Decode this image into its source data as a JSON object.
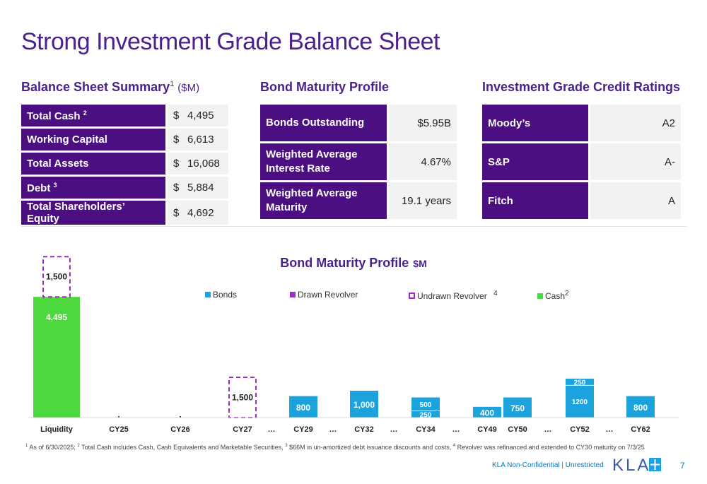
{
  "title": "Strong Investment Grade Balance Sheet",
  "balance_sheet": {
    "heading": "Balance Sheet Summary",
    "heading_sup": "1",
    "heading_unit": "($M)",
    "rows": [
      {
        "label": "Total Cash",
        "sup": "2",
        "currency": "$",
        "value": "4,495"
      },
      {
        "label": "Working Capital",
        "sup": "",
        "currency": "$",
        "value": "6,613"
      },
      {
        "label": "Total Assets",
        "sup": "",
        "currency": "$",
        "value": "16,068"
      },
      {
        "label": "Debt",
        "sup": "3",
        "currency": "$",
        "value": "5,884"
      },
      {
        "label": "Total Shareholders’ Equity",
        "sup": "",
        "currency": "$",
        "value": "4,692"
      }
    ]
  },
  "bond_profile": {
    "heading": "Bond Maturity Profile",
    "rows": [
      {
        "label": "Bonds Outstanding",
        "value": "$5.95B"
      },
      {
        "label": "Weighted Average Interest Rate",
        "value": "4.67%"
      },
      {
        "label": "Weighted Average Maturity",
        "value": "19.1 years"
      }
    ]
  },
  "credit_ratings": {
    "heading": "Investment Grade Credit Ratings",
    "rows": [
      {
        "label": "Moody’s",
        "value": "A2"
      },
      {
        "label": "S&P",
        "value": "A-"
      },
      {
        "label": "Fitch",
        "value": "A"
      }
    ]
  },
  "chart_data": {
    "type": "bar",
    "title": "Bond Maturity Profile",
    "title_unit": "$M",
    "legend": [
      {
        "name": "Bonds",
        "color": "#1ca2dc",
        "sup": "",
        "style": "solid"
      },
      {
        "name": "Drawn Revolver",
        "color": "#a02cc4",
        "sup": "",
        "style": "solid"
      },
      {
        "name": "Undrawn Revolver",
        "color": "#a02cc4",
        "sup": "4",
        "style": "dashed"
      },
      {
        "name": "Cash",
        "color": "#4cd93e",
        "sup": "2",
        "style": "solid"
      }
    ],
    "categories": [
      "Liquidity",
      "CY25",
      "CY26",
      "CY27",
      "…",
      "CY29",
      "…",
      "CY32",
      "…",
      "CY34",
      "…",
      "CY49",
      "CY50",
      "…",
      "CY52",
      "…",
      "CY62"
    ],
    "series": [
      {
        "name": "Cash",
        "values": [
          4495,
          0,
          0,
          0,
          null,
          0,
          null,
          0,
          null,
          0,
          null,
          0,
          0,
          null,
          0,
          null,
          0
        ]
      },
      {
        "name": "Undrawn Revolver",
        "values": [
          1500,
          0,
          0,
          1500,
          null,
          0,
          null,
          0,
          null,
          0,
          null,
          0,
          0,
          null,
          0,
          null,
          0
        ]
      },
      {
        "name": "Bonds",
        "values": [
          0,
          0,
          0,
          0,
          null,
          800,
          null,
          1000,
          null,
          750,
          null,
          400,
          750,
          null,
          1450,
          null,
          800
        ]
      }
    ],
    "bond_segments": {
      "CY34": [
        250,
        500
      ],
      "CY52": [
        1200,
        250
      ]
    },
    "data_labels": {
      "Liquidity": [
        "4,495",
        "1,500"
      ],
      "CY27": [
        "1,500"
      ],
      "CY29": [
        "800"
      ],
      "CY32": [
        "1,000"
      ],
      "CY34": [
        "250",
        "500"
      ],
      "CY49": [
        "400"
      ],
      "CY50": [
        "750"
      ],
      "CY52": [
        "1200",
        "250"
      ],
      "CY62": [
        "800"
      ]
    },
    "ylim": [
      0,
      6500
    ],
    "grid": false,
    "legend_position": "top"
  },
  "footnote": {
    "items": [
      {
        "sup": "1",
        "text": " As of 6/30/2025; "
      },
      {
        "sup": "2",
        "text": " Total Cash includes Cash, Cash Equivalents and Marketable Securities, "
      },
      {
        "sup": "3",
        "text": " $66M in un-amortized debt issuance discounts and costs, "
      },
      {
        "sup": "4",
        "text": " Revolver was refinanced and extended to CY30 maturity on 7/3/25"
      }
    ]
  },
  "footer": {
    "label": "KLA Non-Confidential | Unrestricted",
    "page_number": "7",
    "logo_text": "KLA"
  }
}
